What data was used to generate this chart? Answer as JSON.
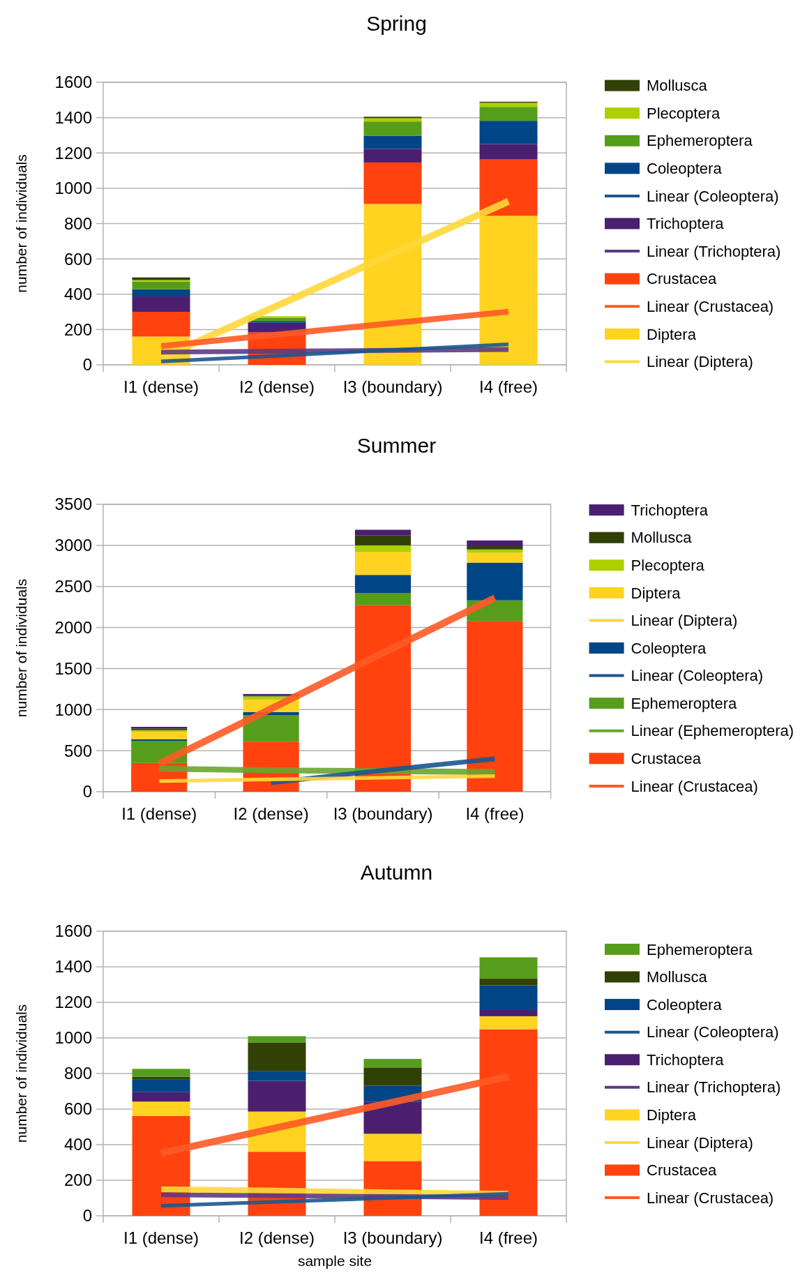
{
  "chart_data": [
    {
      "type": "bar",
      "title": "Spring",
      "ylabel": "number of individuals",
      "categories": [
        "I1 (dense)",
        "I2 (dense)",
        "I3 (boundary)",
        "I4 (free)"
      ],
      "stacked": true,
      "ylim": [
        0,
        1600
      ],
      "yticks": [
        0,
        200,
        400,
        600,
        800,
        1000,
        1200,
        1400,
        1600
      ],
      "grid": "y",
      "legend": "right",
      "series": [
        {
          "name": "Diptera",
          "color": "#ffd320",
          "values": [
            160,
            0,
            911,
            844
          ]
        },
        {
          "name": "Linear (Diptera)",
          "type": "line",
          "color": "#ffd83a",
          "values": [
            38,
            334,
            630,
            926
          ]
        },
        {
          "name": "Crustacea",
          "color": "#ff420e",
          "values": [
            140,
            184,
            235,
            319
          ]
        },
        {
          "name": "Linear (Crustacea)",
          "type": "line",
          "color": "#ff5a26",
          "values": [
            106,
            171,
            236,
            301
          ]
        },
        {
          "name": "Trichoptera",
          "color": "#4b1f6f",
          "values": [
            87,
            54,
            77,
            87
          ]
        },
        {
          "name": "Linear (Trichoptera)",
          "type": "line",
          "color": "#5e3a84",
          "values": [
            72,
            77,
            82,
            87
          ]
        },
        {
          "name": "Coleoptera",
          "color": "#004586",
          "values": [
            41,
            10,
            75,
            132
          ]
        },
        {
          "name": "Linear (Coleoptera)",
          "type": "line",
          "color": "#1a5690",
          "values": [
            19,
            51,
            84,
            116
          ]
        },
        {
          "name": "Ephemeroptera",
          "color": "#579d1c",
          "values": [
            44,
            19,
            80,
            79
          ]
        },
        {
          "name": "Plecoptera",
          "color": "#aecf00",
          "values": [
            8,
            8,
            19,
            23
          ]
        },
        {
          "name": "Mollusca",
          "color": "#314004",
          "values": [
            15,
            0,
            8,
            6
          ]
        }
      ]
    },
    {
      "type": "bar",
      "title": "Summer",
      "ylabel": "number of individuals",
      "categories": [
        "I1 (dense)",
        "I2 (dense)",
        "I3 (boundary)",
        "I4 (free)"
      ],
      "stacked": true,
      "ylim": [
        0,
        3500
      ],
      "yticks": [
        0,
        500,
        1000,
        1500,
        2000,
        2500,
        3000,
        3500
      ],
      "grid": "y",
      "legend": "right",
      "series": [
        {
          "name": "Crustacea",
          "color": "#ff420e",
          "values": [
            350,
            610,
            2270,
            2080
          ]
        },
        {
          "name": "Linear (Crustacea)",
          "type": "line",
          "color": "#ff5a26",
          "values": [
            340,
            1010,
            1690,
            2360
          ]
        },
        {
          "name": "Ephemeroptera",
          "color": "#579d1c",
          "values": [
            270,
            320,
            150,
            250
          ]
        },
        {
          "name": "Linear (Ephemeroptera)",
          "type": "line",
          "color": "#6aa52f",
          "values": [
            280,
            260,
            250,
            240
          ]
        },
        {
          "name": "Coleoptera",
          "color": "#004586",
          "values": [
            20,
            40,
            220,
            460
          ]
        },
        {
          "name": "Linear (Coleoptera)",
          "type": "line",
          "color": "#1a5690",
          "values": [
            null,
            110,
            260,
            400
          ]
        },
        {
          "name": "Diptera",
          "color": "#ffd320",
          "values": [
            90,
            150,
            280,
            120
          ]
        },
        {
          "name": "Linear (Diptera)",
          "type": "line",
          "color": "#ffd83a",
          "values": [
            130,
            150,
            170,
            190
          ]
        },
        {
          "name": "Plecoptera",
          "color": "#aecf00",
          "values": [
            20,
            40,
            80,
            40
          ]
        },
        {
          "name": "Mollusca",
          "color": "#314004",
          "values": [
            20,
            10,
            120,
            40
          ]
        },
        {
          "name": "Trichoptera",
          "color": "#4b1f6f",
          "values": [
            20,
            20,
            70,
            70
          ]
        }
      ]
    },
    {
      "type": "bar",
      "title": "Autumn",
      "ylabel": "number of individuals",
      "xlabel": "sample site",
      "categories": [
        "I1 (dense)",
        "I2 (dense)",
        "I3 (boundary)",
        "I4 (free)"
      ],
      "stacked": true,
      "ylim": [
        0,
        1600
      ],
      "yticks": [
        0,
        200,
        400,
        600,
        800,
        1000,
        1200,
        1400,
        1600
      ],
      "grid": "y",
      "legend": "right",
      "series": [
        {
          "name": "Crustacea",
          "color": "#ff420e",
          "values": [
            561,
            360,
            308,
            1049
          ]
        },
        {
          "name": "Linear (Crustacea)",
          "type": "line",
          "color": "#ff5a26",
          "values": [
            352,
            496,
            639,
            783
          ]
        },
        {
          "name": "Diptera",
          "color": "#ffd320",
          "values": [
            81,
            226,
            153,
            73
          ]
        },
        {
          "name": "Linear (Diptera)",
          "type": "line",
          "color": "#ffd83a",
          "values": [
            149,
            141,
            132,
            124
          ]
        },
        {
          "name": "Trichoptera",
          "color": "#4b1f6f",
          "values": [
            53,
            173,
            181,
            35
          ]
        },
        {
          "name": "Linear (Trichoptera)",
          "type": "line",
          "color": "#5e3a84",
          "values": [
            118,
            113,
            108,
            103
          ]
        },
        {
          "name": "Coleoptera",
          "color": "#004586",
          "values": [
            73,
            56,
            89,
            139
          ]
        },
        {
          "name": "Linear (Coleoptera)",
          "type": "line",
          "color": "#1a5690",
          "values": [
            56,
            79,
            101,
            124
          ]
        },
        {
          "name": "Mollusca",
          "color": "#314004",
          "values": [
            14,
            160,
            103,
            37
          ]
        },
        {
          "name": "Ephemeroptera",
          "color": "#579d1c",
          "values": [
            44,
            35,
            48,
            120
          ]
        }
      ]
    }
  ]
}
